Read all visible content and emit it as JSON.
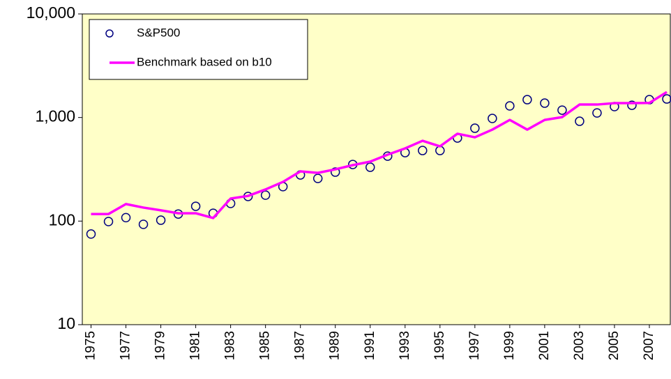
{
  "chart_data": {
    "type": "line",
    "log_scale_y": true,
    "grid": false,
    "legend": "upper left",
    "background": "#ffffc8",
    "x": [
      1975,
      1976,
      1977,
      1978,
      1979,
      1980,
      1981,
      1982,
      1983,
      1984,
      1985,
      1986,
      1987,
      1988,
      1989,
      1990,
      1991,
      1992,
      1993,
      1994,
      1995,
      1996,
      1997,
      1998,
      1999,
      2000,
      2001,
      2002,
      2003,
      2004,
      2005,
      2006,
      2007,
      2008
    ],
    "xlim": [
      1974.5,
      2008.2
    ],
    "xticks": [
      1975,
      1977,
      1979,
      1981,
      1983,
      1985,
      1987,
      1989,
      1991,
      1993,
      1995,
      1997,
      1999,
      2001,
      2003,
      2005,
      2007
    ],
    "ylim": [
      10,
      10000
    ],
    "yticks": [
      10,
      100,
      {
        "value": 1000,
        "label": "1,000"
      },
      {
        "value": 10000,
        "label": "10,000"
      }
    ],
    "series": [
      {
        "name": "S&P500",
        "color": "#000080",
        "style": "markers",
        "values": [
          75,
          99,
          108,
          93,
          102,
          117,
          139,
          119,
          148,
          173,
          178,
          215,
          279,
          258,
          297,
          352,
          331,
          424,
          458,
          480,
          480,
          634,
          788,
          979,
          1294,
          1487,
          1376,
          1178,
          920,
          1107,
          1274,
          1313,
          1487,
          1510
        ]
      },
      {
        "name": "Benchmark based on b10",
        "color": "#ff00ff",
        "style": "line",
        "values": [
          117,
          117,
          146,
          135,
          127,
          119,
          119,
          107,
          165,
          175,
          202,
          239,
          302,
          292,
          316,
          347,
          375,
          438,
          503,
          596,
          527,
          697,
          644,
          764,
          948,
          764,
          948,
          1009,
          1334,
          1334,
          1376,
          1376,
          1383,
          1763
        ]
      }
    ]
  }
}
